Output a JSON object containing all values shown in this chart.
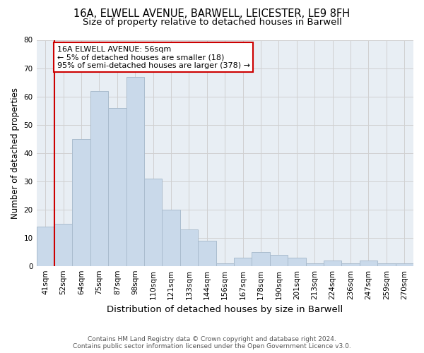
{
  "title1": "16A, ELWELL AVENUE, BARWELL, LEICESTER, LE9 8FH",
  "title2": "Size of property relative to detached houses in Barwell",
  "xlabel": "Distribution of detached houses by size in Barwell",
  "ylabel": "Number of detached properties",
  "footer": "Contains HM Land Registry data © Crown copyright and database right 2024.\nContains public sector information licensed under the Open Government Licence v3.0.",
  "annotation_line1": "16A ELWELL AVENUE: 56sqm",
  "annotation_line2": "← 5% of detached houses are smaller (18)",
  "annotation_line3": "95% of semi-detached houses are larger (378) →",
  "bar_color": "#c9d9ea",
  "bar_edge_color": "#aabcce",
  "vline_color": "#cc0000",
  "vline_x": 1,
  "annotation_box_color": "white",
  "annotation_box_edge": "#cc0000",
  "categories": [
    "41sqm",
    "52sqm",
    "64sqm",
    "75sqm",
    "87sqm",
    "98sqm",
    "110sqm",
    "121sqm",
    "133sqm",
    "144sqm",
    "156sqm",
    "167sqm",
    "178sqm",
    "190sqm",
    "201sqm",
    "213sqm",
    "224sqm",
    "236sqm",
    "247sqm",
    "259sqm",
    "270sqm"
  ],
  "values": [
    14,
    15,
    45,
    62,
    56,
    67,
    31,
    20,
    13,
    9,
    1,
    3,
    5,
    4,
    3,
    1,
    2,
    1,
    2,
    1,
    1
  ],
  "ylim": [
    0,
    80
  ],
  "yticks": [
    0,
    10,
    20,
    30,
    40,
    50,
    60,
    70,
    80
  ],
  "grid_color": "#d0d0d0",
  "background_color": "#e8eef4",
  "fig_background": "#ffffff",
  "title1_fontsize": 10.5,
  "title2_fontsize": 9.5,
  "xlabel_fontsize": 9.5,
  "ylabel_fontsize": 8.5,
  "tick_fontsize": 7.5,
  "annotation_fontsize": 8,
  "footer_fontsize": 6.5
}
